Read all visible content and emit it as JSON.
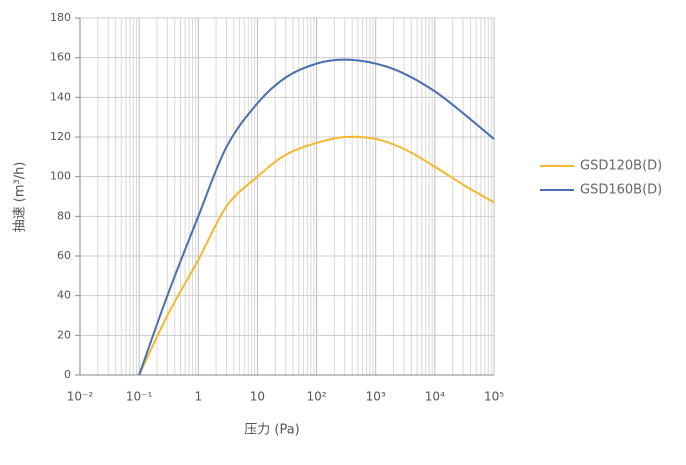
{
  "chart_data": {
    "type": "line",
    "xlabel": "压力 (Pa)",
    "ylabel": "抽速 (m³/h)",
    "x": [
      0.1,
      0.3,
      1,
      3,
      10,
      30,
      100,
      300,
      1000,
      3000,
      10000,
      30000,
      100000
    ],
    "series": [
      {
        "name": "GSD120B(D)",
        "color": "#f5b82e",
        "values": [
          0,
          30,
          58,
          85,
          100,
          111,
          117,
          120,
          119,
          114,
          105,
          96,
          87
        ]
      },
      {
        "name": "GSD160B(D)",
        "color": "#4a6fb0",
        "values": [
          0,
          40,
          80,
          115,
          137,
          150,
          157,
          159,
          157,
          152,
          143,
          132,
          119
        ]
      }
    ],
    "xlim": [
      0.01,
      100000
    ],
    "xlog": true,
    "xticks": [
      {
        "value": 0.01,
        "label": "10⁻²"
      },
      {
        "value": 0.1,
        "label": "10⁻¹"
      },
      1,
      10,
      {
        "value": 100,
        "label": "10²"
      },
      {
        "value": 1000,
        "label": "10³"
      },
      {
        "value": 10000,
        "label": "10⁴"
      },
      {
        "value": 100000,
        "label": "10⁵"
      }
    ],
    "ylim": [
      0,
      180
    ],
    "yticks": [
      0,
      20,
      40,
      60,
      80,
      100,
      120,
      140,
      160,
      180
    ],
    "grid": true,
    "legend": "right"
  }
}
